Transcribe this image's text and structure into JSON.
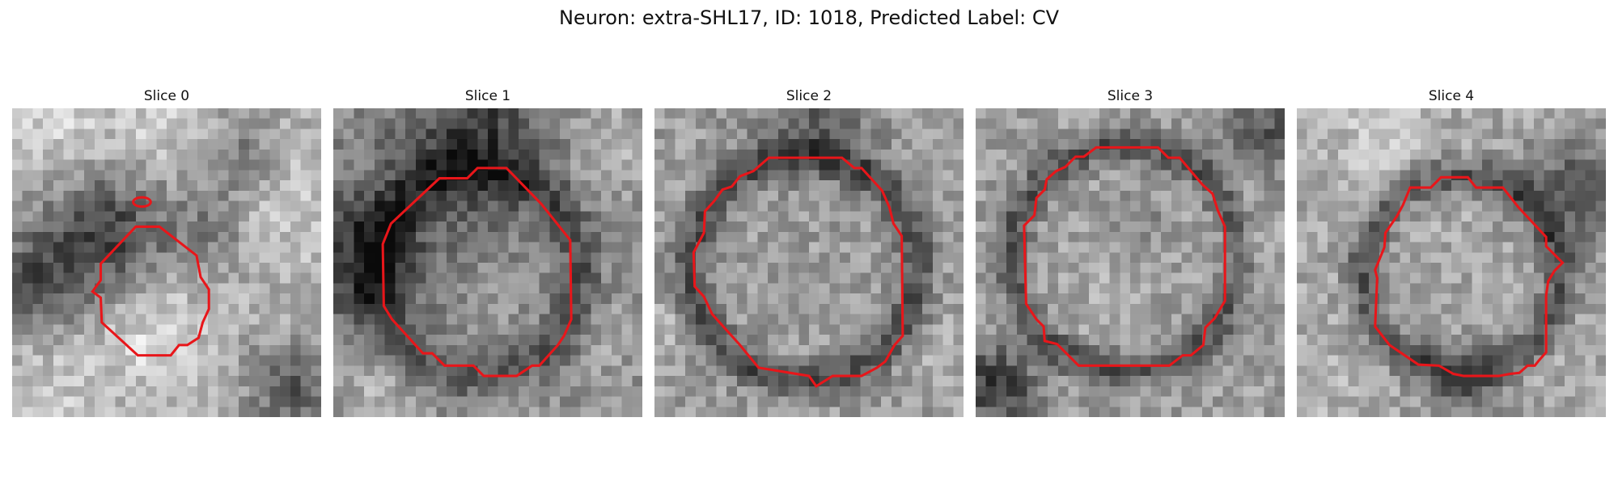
{
  "figure": {
    "title": "Neuron: extra-SHL17, ID: 1018, Predicted Label: CV"
  },
  "panels": [
    {
      "title": "Slice 0"
    },
    {
      "title": "Slice 1"
    },
    {
      "title": "Slice 2"
    },
    {
      "title": "Slice 3"
    },
    {
      "title": "Slice 4"
    }
  ],
  "colors": {
    "contour": "#e8161a",
    "background": "#ffffff"
  }
}
